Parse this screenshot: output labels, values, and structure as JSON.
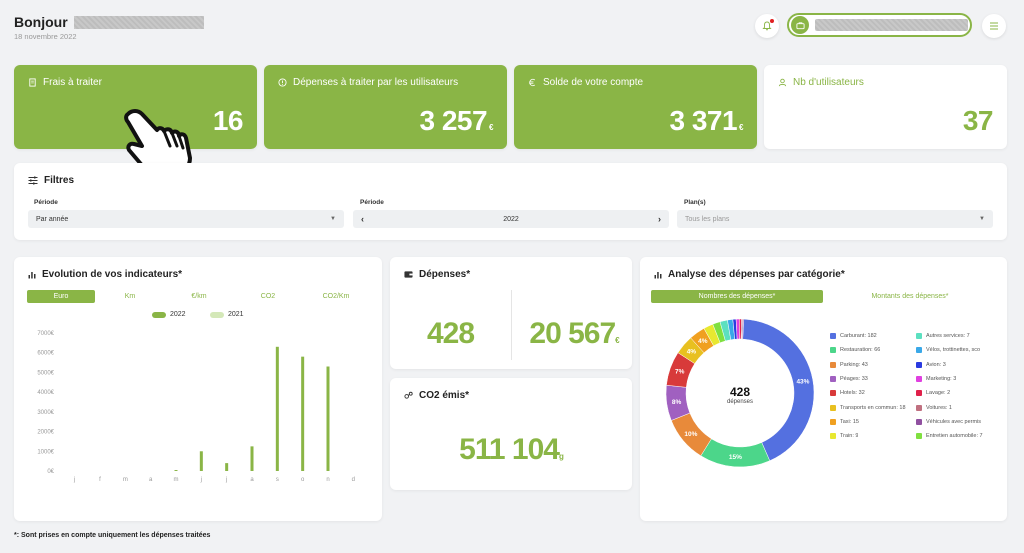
{
  "header": {
    "greeting": "Bonjour",
    "date": "18 novembre 2022"
  },
  "kpis": [
    {
      "title": "Frais à traiter",
      "value": "16",
      "currency": "",
      "icon": "receipt-icon"
    },
    {
      "title": "Dépenses à traiter par les utilisateurs",
      "value": "3 257",
      "currency": "€",
      "icon": "alert-circle-icon"
    },
    {
      "title": "Solde de votre compte",
      "value": "3 371",
      "currency": "€",
      "icon": "euro-icon"
    },
    {
      "title": "Nb d'utilisateurs",
      "value": "37",
      "currency": "",
      "icon": "user-icon"
    }
  ],
  "filters": {
    "title": "Filtres",
    "period_label_1": "Période",
    "period_value_1": "Par année",
    "period_label_2": "Période",
    "period_value_2": "2022",
    "plans_label": "Plan(s)",
    "plans_placeholder": "Tous les plans"
  },
  "evolution": {
    "title": "Evolution de vos indicateurs*",
    "tabs": [
      "Euro",
      "Km",
      "€/km",
      "CO2",
      "CO2/Km"
    ],
    "active_tab": 0
  },
  "depenses": {
    "title": "Dépenses*",
    "count": "428",
    "amount": "20 567",
    "currency": "€"
  },
  "co2": {
    "title": "CO2 émis*",
    "value": "511 104",
    "unit": "g"
  },
  "analyse": {
    "title": "Analyse des dépenses par catégorie*",
    "tabs": [
      "Nombres des dépenses*",
      "Montants des dépenses*"
    ],
    "center_value": "428",
    "center_label": "dépenses",
    "legend": [
      {
        "label": "Carburant: 182",
        "color": "#5470e0"
      },
      {
        "label": "Autres services: 7",
        "color": "#5ce0c0"
      },
      {
        "label": "Restauration: 66",
        "color": "#4cd68a"
      },
      {
        "label": "Vélos, trottinettes, sco",
        "color": "#3aa8e8"
      },
      {
        "label": "Parking: 43",
        "color": "#e88a3a"
      },
      {
        "label": "Avion: 3",
        "color": "#2a3ae0"
      },
      {
        "label": "Péages: 33",
        "color": "#a060c0"
      },
      {
        "label": "Marketing: 3",
        "color": "#e040e0"
      },
      {
        "label": "Hotels: 32",
        "color": "#d83a3a"
      },
      {
        "label": "Lavage: 2",
        "color": "#e0204a"
      },
      {
        "label": "Transports en commun: 18",
        "color": "#e8c020"
      },
      {
        "label": "Voitures: 1",
        "color": "#c07080"
      },
      {
        "label": "Taxi: 15",
        "color": "#f0a020"
      },
      {
        "label": "Véhicules avec permis",
        "color": "#9050a0"
      },
      {
        "label": "Train: 9",
        "color": "#e8e830"
      },
      {
        "label": "Entretien automobile: 7",
        "color": "#80e040"
      }
    ],
    "slice_labels": [
      "43%",
      "15%",
      "10%",
      "8%",
      "7%",
      "4%",
      "4%"
    ]
  },
  "footnote": "*: Sont prises en compte uniquement les dépenses traitées",
  "chart_data": [
    {
      "type": "bar",
      "categories": [
        "j",
        "f",
        "m",
        "a",
        "m",
        "j",
        "j",
        "a",
        "s",
        "o",
        "n",
        "d"
      ],
      "series": [
        {
          "name": "2022",
          "values": [
            0,
            0,
            0,
            0,
            50,
            1000,
            400,
            1250,
            6300,
            5800,
            5300,
            0
          ]
        },
        {
          "name": "2021",
          "values": [
            0,
            0,
            0,
            0,
            0,
            0,
            0,
            0,
            0,
            0,
            0,
            0
          ]
        }
      ],
      "yticks": [
        "7000€",
        "6000€",
        "5000€",
        "4000€",
        "3000€",
        "2000€",
        "1000€",
        "0€"
      ],
      "ylim": [
        0,
        7000
      ],
      "colors": [
        "#8ab546",
        "#d4e8b8"
      ]
    },
    {
      "type": "pie",
      "categories": [
        "Carburant",
        "Restauration",
        "Parking",
        "Péages",
        "Hotels",
        "Transports en commun",
        "Taxi",
        "Train",
        "Entretien automobile",
        "Autres services",
        "Vélos, trottinettes, sco",
        "Avion",
        "Marketing",
        "Lavage",
        "Voitures",
        "Véhicules avec permis"
      ],
      "values": [
        182,
        66,
        43,
        33,
        32,
        18,
        15,
        9,
        7,
        7,
        5,
        3,
        3,
        2,
        1,
        1
      ],
      "colors": [
        "#5470e0",
        "#4cd68a",
        "#e88a3a",
        "#a060c0",
        "#d83a3a",
        "#e8c020",
        "#f0a020",
        "#e8e830",
        "#80e040",
        "#5ce0c0",
        "#3aa8e8",
        "#2a3ae0",
        "#e040e0",
        "#e0204a",
        "#c07080",
        "#9050a0"
      ]
    }
  ]
}
